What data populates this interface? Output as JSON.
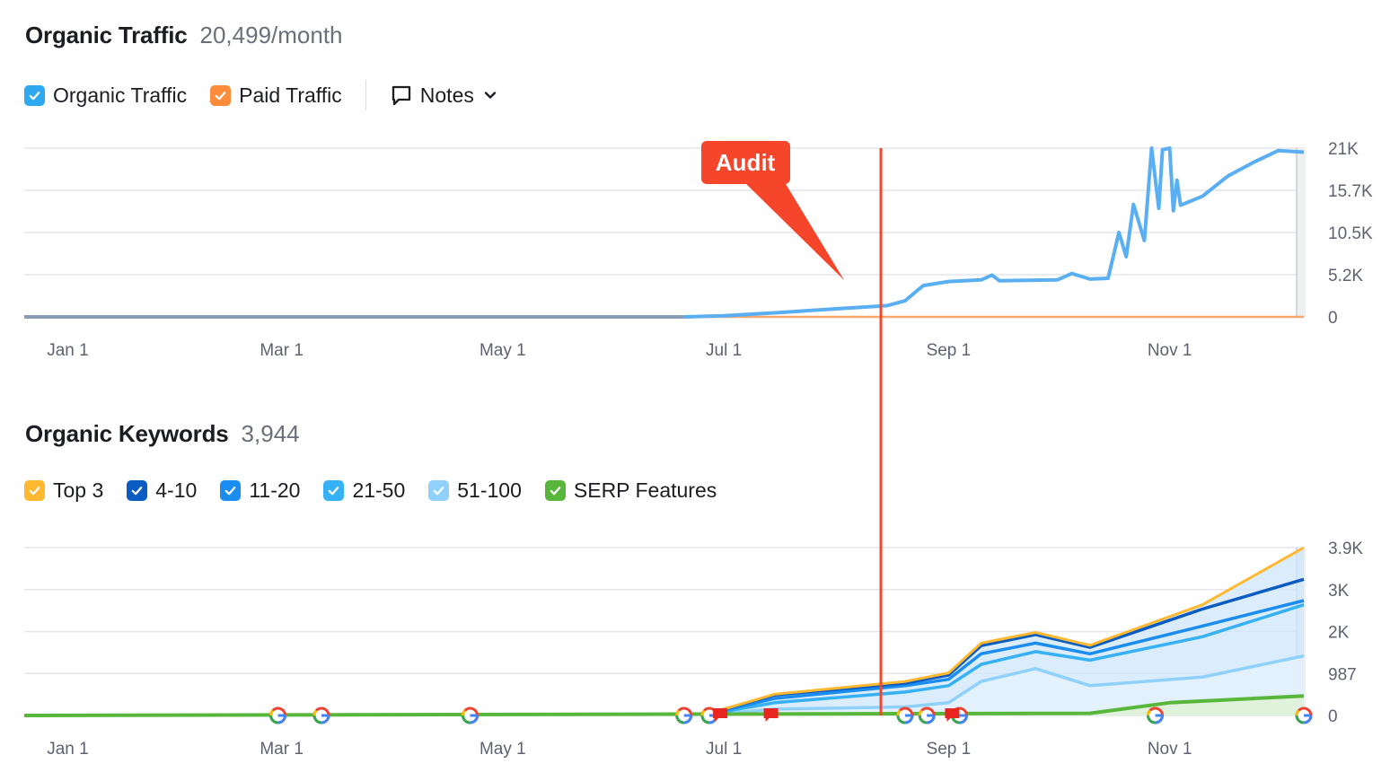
{
  "traffic": {
    "title": "Organic Traffic",
    "value": "20,499/month",
    "legend": [
      {
        "label": "Organic Traffic",
        "color": "#2ea9f1"
      },
      {
        "label": "Paid Traffic",
        "color": "#ff8c3b"
      }
    ],
    "notes_label": "Notes"
  },
  "keywords": {
    "title": "Organic Keywords",
    "value": "3,944",
    "legend": [
      {
        "label": "Top 3",
        "color": "#ffb930"
      },
      {
        "label": "4-10",
        "color": "#0a5cc2"
      },
      {
        "label": "11-20",
        "color": "#1b8cf0"
      },
      {
        "label": "21-50",
        "color": "#36b1f6"
      },
      {
        "label": "51-100",
        "color": "#8fd1fb"
      },
      {
        "label": "SERP Features",
        "color": "#58b73a"
      }
    ]
  },
  "annotation": {
    "label": "Audit",
    "color": "#f5452a"
  },
  "chart_data": [
    {
      "type": "line",
      "title": "Organic Traffic",
      "x_ticks": [
        "Jan 1",
        "Mar 1",
        "May 1",
        "Jul 1",
        "Sep 1",
        "Nov 1"
      ],
      "y_ticks": [
        "21K",
        "15.7K",
        "10.5K",
        "5.2K",
        "0"
      ],
      "ylim": [
        0,
        21000
      ],
      "xlim": [
        "2023-12-20",
        "2023-12-08"
      ],
      "grid": true,
      "series": [
        {
          "name": "Organic Traffic",
          "color": "#5aaff2",
          "points": [
            [
              "2023-12-20",
              0
            ],
            [
              "2023-06-20",
              0
            ],
            [
              "2023-07-01",
              150
            ],
            [
              "2023-07-15",
              500
            ],
            [
              "2023-08-01",
              1000
            ],
            [
              "2023-08-15",
              1400
            ],
            [
              "2023-08-20",
              2000
            ],
            [
              "2023-08-25",
              3900
            ],
            [
              "2023-09-01",
              4400
            ],
            [
              "2023-09-10",
              4600
            ],
            [
              "2023-09-13",
              5200
            ],
            [
              "2023-09-15",
              4500
            ],
            [
              "2023-10-01",
              4600
            ],
            [
              "2023-10-05",
              5400
            ],
            [
              "2023-10-10",
              4700
            ],
            [
              "2023-10-15",
              4800
            ],
            [
              "2023-10-18",
              10500
            ],
            [
              "2023-10-20",
              7500
            ],
            [
              "2023-10-22",
              14000
            ],
            [
              "2023-10-25",
              9500
            ],
            [
              "2023-10-27",
              21000
            ],
            [
              "2023-10-29",
              13500
            ],
            [
              "2023-10-30",
              20800
            ],
            [
              "2023-11-01",
              21000
            ],
            [
              "2023-11-02",
              13200
            ],
            [
              "2023-11-03",
              17000
            ],
            [
              "2023-11-04",
              13900
            ],
            [
              "2023-11-10",
              15000
            ],
            [
              "2023-11-17",
              17500
            ],
            [
              "2023-11-24",
              19200
            ],
            [
              "2023-12-01",
              20700
            ],
            [
              "2023-12-08",
              20499
            ]
          ]
        },
        {
          "name": "Paid Traffic",
          "color": "#ff8c3b",
          "points": [
            [
              "2023-12-20",
              0
            ],
            [
              "2023-12-08",
              0
            ]
          ]
        }
      ]
    },
    {
      "type": "area",
      "title": "Organic Keywords",
      "x_ticks": [
        "Jan 1",
        "Mar 1",
        "May 1",
        "Jul 1",
        "Sep 1",
        "Nov 1"
      ],
      "y_ticks": [
        "3.9K",
        "3K",
        "2K",
        "987",
        "0"
      ],
      "ylim": [
        0,
        3944
      ],
      "grid": true,
      "series": [
        {
          "name": "Top 3",
          "color": "#ffb930",
          "points": [
            [
              "2023-06-25",
              0
            ],
            [
              "2023-07-15",
              500
            ],
            [
              "2023-08-20",
              800
            ],
            [
              "2023-09-01",
              1000
            ],
            [
              "2023-09-10",
              1700
            ],
            [
              "2023-09-25",
              1950
            ],
            [
              "2023-10-10",
              1650
            ],
            [
              "2023-11-10",
              2600
            ],
            [
              "2023-12-08",
              3944
            ]
          ]
        },
        {
          "name": "4-10",
          "color": "#0a5cc2",
          "points": [
            [
              "2023-06-25",
              0
            ],
            [
              "2023-07-15",
              480
            ],
            [
              "2023-08-20",
              760
            ],
            [
              "2023-09-01",
              950
            ],
            [
              "2023-09-10",
              1640
            ],
            [
              "2023-09-25",
              1900
            ],
            [
              "2023-10-10",
              1600
            ],
            [
              "2023-11-10",
              2500
            ],
            [
              "2023-12-08",
              3200
            ]
          ]
        },
        {
          "name": "11-20",
          "color": "#1b8cf0",
          "points": [
            [
              "2023-06-25",
              0
            ],
            [
              "2023-07-15",
              400
            ],
            [
              "2023-08-20",
              700
            ],
            [
              "2023-09-01",
              850
            ],
            [
              "2023-09-10",
              1450
            ],
            [
              "2023-09-25",
              1700
            ],
            [
              "2023-10-10",
              1450
            ],
            [
              "2023-11-10",
              2100
            ],
            [
              "2023-12-08",
              2700
            ]
          ]
        },
        {
          "name": "21-50",
          "color": "#36b1f6",
          "points": [
            [
              "2023-06-25",
              0
            ],
            [
              "2023-07-15",
              300
            ],
            [
              "2023-08-20",
              550
            ],
            [
              "2023-09-01",
              700
            ],
            [
              "2023-09-10",
              1200
            ],
            [
              "2023-09-25",
              1500
            ],
            [
              "2023-10-10",
              1300
            ],
            [
              "2023-11-10",
              1850
            ],
            [
              "2023-12-08",
              2600
            ]
          ]
        },
        {
          "name": "51-100",
          "color": "#8fd1fb",
          "points": [
            [
              "2023-06-25",
              0
            ],
            [
              "2023-07-15",
              150
            ],
            [
              "2023-08-20",
              200
            ],
            [
              "2023-09-01",
              300
            ],
            [
              "2023-09-10",
              800
            ],
            [
              "2023-09-25",
              1100
            ],
            [
              "2023-10-10",
              700
            ],
            [
              "2023-11-10",
              900
            ],
            [
              "2023-12-08",
              1400
            ]
          ]
        },
        {
          "name": "SERP Features",
          "color": "#58b73a",
          "points": [
            [
              "2023-12-20",
              0
            ],
            [
              "2023-10-10",
              50
            ],
            [
              "2023-11-01",
              300
            ],
            [
              "2023-12-08",
              460
            ]
          ]
        }
      ]
    }
  ]
}
